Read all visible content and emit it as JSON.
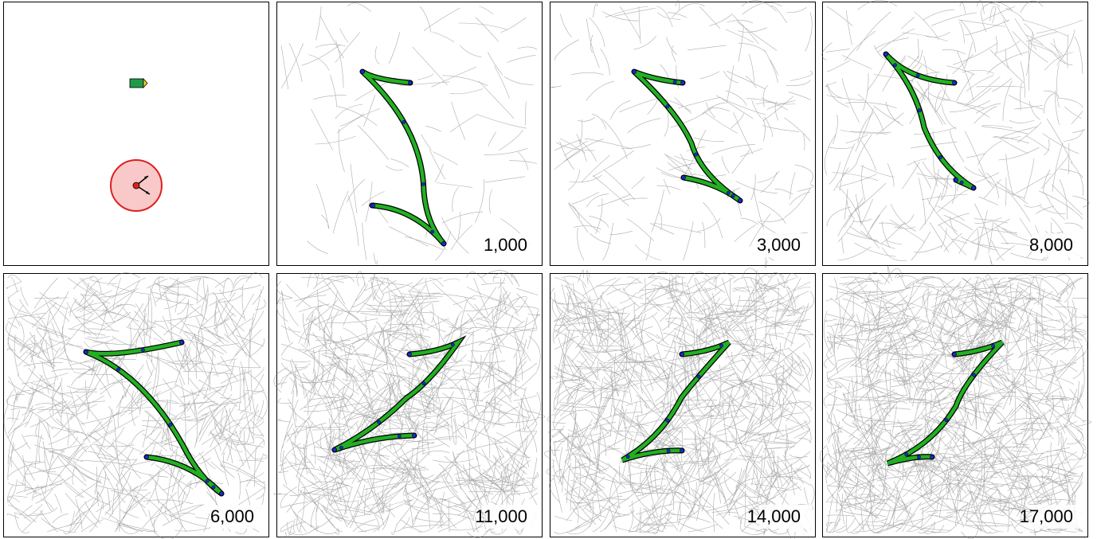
{
  "panels": [
    {
      "label": "1,000"
    },
    {
      "label": "3,000"
    },
    {
      "label": "8,000"
    },
    {
      "label": "6,000"
    },
    {
      "label": "11,000"
    },
    {
      "label": "14,000"
    },
    {
      "label": "17,000"
    }
  ]
}
